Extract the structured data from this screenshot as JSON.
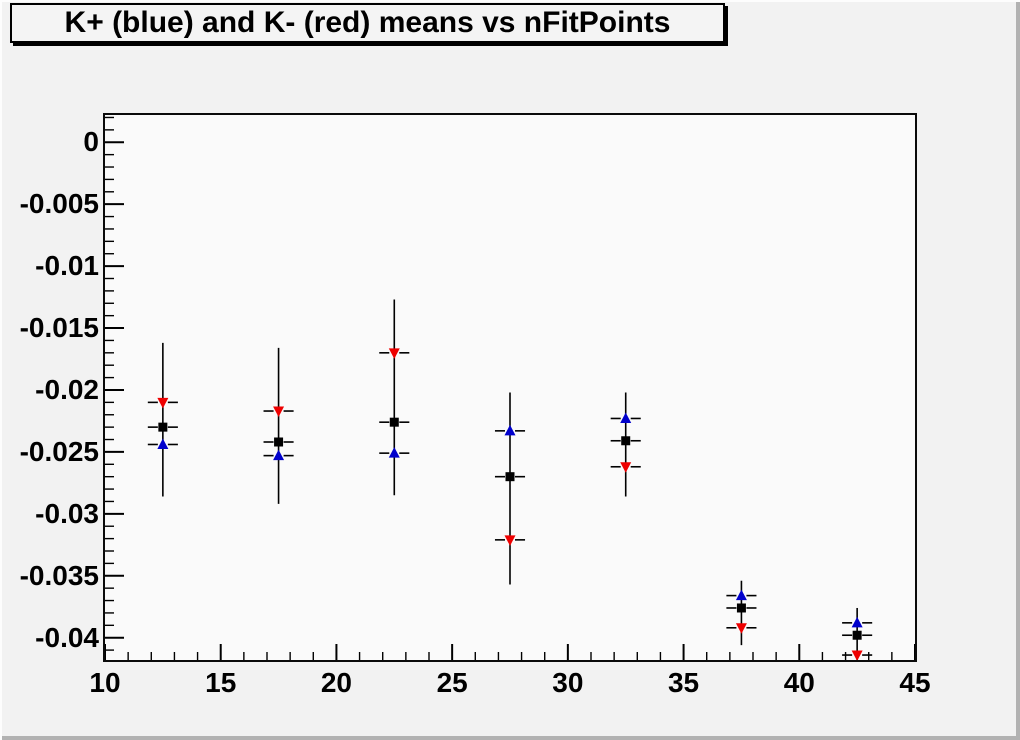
{
  "title_bar": {
    "title": "K+ (blue) and K- (red) means vs nFitPoints"
  },
  "chart_data": {
    "type": "scatter",
    "title": "K+ (blue) and K- (red) means vs nFitPoints",
    "xlabel": "",
    "ylabel": "",
    "xlim": [
      10,
      45
    ],
    "ylim": [
      -0.0418,
      0.0022
    ],
    "grid": false,
    "legend": "none",
    "x_ticks": [
      10,
      15,
      20,
      25,
      30,
      35,
      40,
      45
    ],
    "x_tick_labels": [
      "10",
      "15",
      "20",
      "25",
      "30",
      "35",
      "40",
      "45"
    ],
    "x_minor_step": 1,
    "y_ticks": [
      {
        "v": 0,
        "label": "0"
      },
      {
        "v": -0.005,
        "label": "-0.005"
      },
      {
        "v": -0.01,
        "label": "-0.01"
      },
      {
        "v": -0.015,
        "label": "-0.015"
      },
      {
        "v": -0.02,
        "label": "-0.02"
      },
      {
        "v": -0.025,
        "label": "-0.025"
      },
      {
        "v": -0.03,
        "label": "-0.03"
      },
      {
        "v": -0.035,
        "label": "-0.035"
      },
      {
        "v": -0.04,
        "label": "-0.04"
      }
    ],
    "y_minor_step": 0.001,
    "x": [
      12.5,
      17.5,
      22.5,
      27.5,
      32.5,
      37.5,
      42.5
    ],
    "xerr": 0.65,
    "series": [
      {
        "name": "K+ mean",
        "marker": "triangle-up",
        "color": "#0000cc",
        "values": [
          -0.0244,
          -0.0253,
          -0.0251,
          -0.0233,
          -0.0223,
          -0.0366,
          -0.0388
        ]
      },
      {
        "name": "K- mean",
        "marker": "triangle-down",
        "color": "#ee0000",
        "values": [
          -0.021,
          -0.0217,
          -0.017,
          -0.0321,
          -0.0262,
          -0.0392,
          -0.0414
        ]
      },
      {
        "name": "combined mean",
        "marker": "square",
        "color": "#000000",
        "values": [
          -0.023,
          -0.0242,
          -0.0226,
          -0.027,
          -0.0241,
          -0.0376,
          -0.0398
        ]
      }
    ],
    "error_lines": [
      [
        -0.0162,
        -0.0286
      ],
      [
        -0.0166,
        -0.0292
      ],
      [
        -0.0127,
        -0.0285
      ],
      [
        -0.0202,
        -0.0357
      ],
      [
        -0.0202,
        -0.0286
      ],
      [
        -0.0354,
        -0.0406
      ],
      [
        -0.0376,
        -0.0418
      ]
    ],
    "error_bar_color": "#000000"
  }
}
